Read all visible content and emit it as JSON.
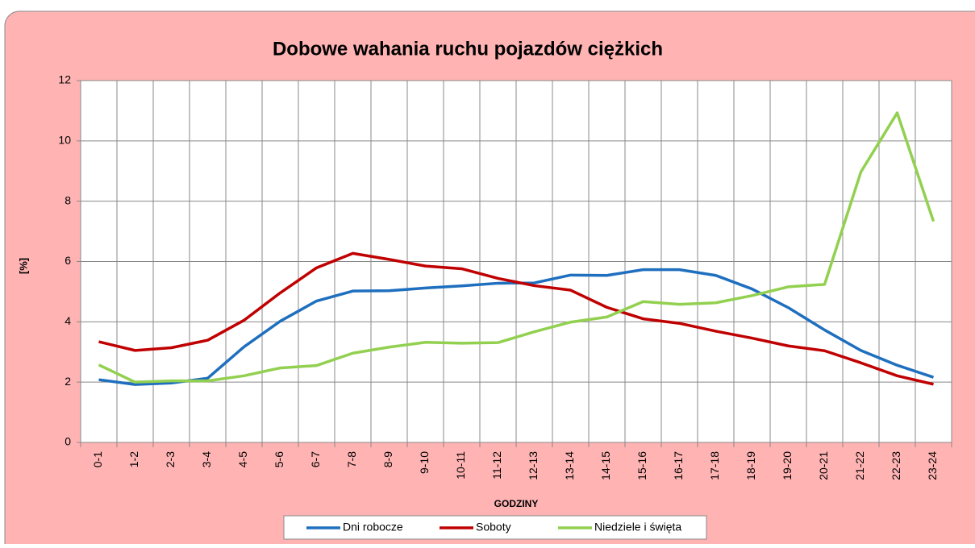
{
  "chart_data": {
    "type": "line",
    "title": "Dobowe wahania ruchu pojazdów ciężkich",
    "y_label": "[%]",
    "x_label": "Godziny",
    "categories": [
      "0-1",
      "1-2",
      "2-3",
      "3-4",
      "4-5",
      "5-6",
      "6-7",
      "7-8",
      "8-9",
      "9-10",
      "10-11",
      "11-12",
      "12-13",
      "13-14",
      "14-15",
      "15-16",
      "16-17",
      "17-18",
      "18-19",
      "19-20",
      "20-21",
      "21-22",
      "22-23",
      "23-24"
    ],
    "series": [
      {
        "name": "Dni robocze",
        "color": "#1f6fbf",
        "values": [
          2.08,
          1.92,
          1.97,
          2.13,
          3.17,
          4.02,
          4.69,
          5.02,
          5.03,
          5.12,
          5.19,
          5.28,
          5.29,
          5.55,
          5.54,
          5.73,
          5.73,
          5.54,
          5.09,
          4.47,
          3.73,
          3.05,
          2.56,
          2.16
        ]
      },
      {
        "name": "Soboty",
        "color": "#c00000",
        "values": [
          3.34,
          3.05,
          3.14,
          3.39,
          4.05,
          4.96,
          5.79,
          6.27,
          6.07,
          5.85,
          5.76,
          5.44,
          5.2,
          5.05,
          4.48,
          4.1,
          3.95,
          3.69,
          3.46,
          3.2,
          3.04,
          2.64,
          2.21,
          1.93
        ]
      },
      {
        "name": "Niedziele i święta",
        "color": "#92d050",
        "values": [
          2.57,
          2.0,
          2.04,
          2.04,
          2.21,
          2.47,
          2.55,
          2.96,
          3.16,
          3.32,
          3.29,
          3.31,
          3.67,
          3.99,
          4.16,
          4.67,
          4.58,
          4.63,
          4.87,
          5.16,
          5.24,
          8.97,
          10.93,
          7.33
        ]
      }
    ],
    "ylim": [
      0,
      12
    ],
    "yticks": [
      0,
      2,
      4,
      6,
      8,
      10,
      12
    ],
    "grid": true,
    "legend": "bottom"
  }
}
